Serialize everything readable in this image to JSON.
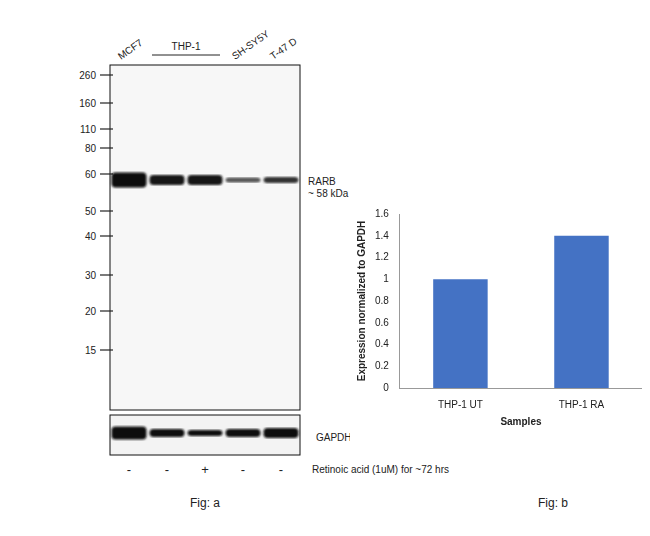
{
  "chart_data": {
    "type": "bar",
    "x_label": "Samples",
    "y_label": "Expression normalized to GAPDH",
    "categories": [
      "THP-1 UT",
      "THP-1 RA"
    ],
    "values": [
      1,
      1.4
    ],
    "color": "#4472c4",
    "ylim": [
      0,
      1.6
    ],
    "yticks": [
      0,
      0.2,
      0.4,
      0.6,
      0.8,
      1,
      1.2,
      1.4,
      1.6
    ],
    "grid": false
  },
  "blot": {
    "samples": [
      {
        "label": "MCF7",
        "treatment": [
          "-"
        ]
      },
      {
        "label": "THP-1",
        "treatment": [
          "-",
          "+"
        ]
      },
      {
        "label": "SH-SY5Y",
        "treatment": [
          "-"
        ]
      },
      {
        "label": "T-47 D",
        "treatment": [
          "-"
        ]
      }
    ],
    "treatment_label": "Retinoic acid (1uM) for ~72 hrs",
    "markers": [
      260,
      160,
      110,
      80,
      60,
      50,
      40,
      30,
      20,
      15
    ],
    "target_label": [
      "RARB",
      "~ 58 kDa"
    ],
    "loading_control": "GAPDH"
  },
  "figure_labels": [
    "Fig: a",
    "Fig: b"
  ]
}
